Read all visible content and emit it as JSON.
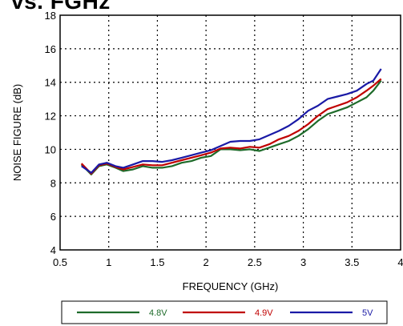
{
  "page": {
    "title_fragment": "vs. FGHz"
  },
  "chart_data": {
    "type": "line",
    "title": "",
    "xlabel": "FREQUENCY (GHz)",
    "ylabel": "NOISE FIGURE (dB)",
    "xlim": [
      0.5,
      4
    ],
    "ylim": [
      4,
      18
    ],
    "x_ticks": [
      "0.5",
      "1",
      "1.5",
      "2",
      "2.5",
      "3",
      "3.5",
      "4"
    ],
    "y_ticks": [
      "4",
      "6",
      "8",
      "10",
      "12",
      "14",
      "16",
      "18"
    ],
    "grid": "dotted",
    "legend_position": "bottom",
    "series": [
      {
        "name": "4.8V",
        "color": "#1e6b2a",
        "x": [
          0.72,
          0.82,
          0.9,
          0.98,
          1.07,
          1.15,
          1.25,
          1.35,
          1.45,
          1.55,
          1.65,
          1.75,
          1.85,
          1.95,
          2.05,
          2.15,
          2.25,
          2.35,
          2.45,
          2.55,
          2.65,
          2.75,
          2.85,
          2.95,
          3.05,
          3.15,
          3.25,
          3.35,
          3.45,
          3.55,
          3.65,
          3.72,
          3.8
        ],
        "y": [
          9.1,
          8.5,
          9.0,
          9.1,
          8.9,
          8.7,
          8.8,
          9.0,
          8.9,
          8.9,
          9.0,
          9.2,
          9.3,
          9.5,
          9.6,
          10.0,
          10.0,
          9.95,
          10.0,
          9.9,
          10.1,
          10.3,
          10.5,
          10.8,
          11.2,
          11.7,
          12.1,
          12.3,
          12.5,
          12.8,
          13.1,
          13.5,
          14.1
        ]
      },
      {
        "name": "4.9V",
        "color": "#c00000",
        "x": [
          0.72,
          0.82,
          0.9,
          0.98,
          1.07,
          1.15,
          1.25,
          1.35,
          1.45,
          1.55,
          1.65,
          1.75,
          1.85,
          1.95,
          2.05,
          2.15,
          2.25,
          2.35,
          2.45,
          2.55,
          2.65,
          2.75,
          2.85,
          2.95,
          3.05,
          3.15,
          3.25,
          3.35,
          3.45,
          3.55,
          3.65,
          3.72,
          3.8
        ],
        "y": [
          9.15,
          8.55,
          9.05,
          9.15,
          8.95,
          8.8,
          8.95,
          9.1,
          9.05,
          9.05,
          9.2,
          9.35,
          9.5,
          9.65,
          9.8,
          10.05,
          10.1,
          10.05,
          10.15,
          10.1,
          10.3,
          10.6,
          10.8,
          11.1,
          11.5,
          12.0,
          12.4,
          12.6,
          12.8,
          13.1,
          13.5,
          13.8,
          14.2
        ]
      },
      {
        "name": "5V",
        "color": "#1a1aa6",
        "x": [
          0.72,
          0.82,
          0.9,
          0.98,
          1.07,
          1.15,
          1.25,
          1.35,
          1.45,
          1.55,
          1.65,
          1.75,
          1.85,
          1.95,
          2.05,
          2.15,
          2.25,
          2.35,
          2.45,
          2.55,
          2.65,
          2.75,
          2.85,
          2.95,
          3.05,
          3.15,
          3.25,
          3.35,
          3.45,
          3.55,
          3.65,
          3.72,
          3.8
        ],
        "y": [
          9.0,
          8.6,
          9.1,
          9.2,
          9.0,
          8.9,
          9.1,
          9.3,
          9.3,
          9.25,
          9.35,
          9.5,
          9.65,
          9.8,
          9.95,
          10.2,
          10.45,
          10.5,
          10.5,
          10.6,
          10.85,
          11.1,
          11.4,
          11.8,
          12.3,
          12.6,
          13.0,
          13.15,
          13.3,
          13.5,
          13.9,
          14.1,
          14.8
        ]
      }
    ]
  }
}
